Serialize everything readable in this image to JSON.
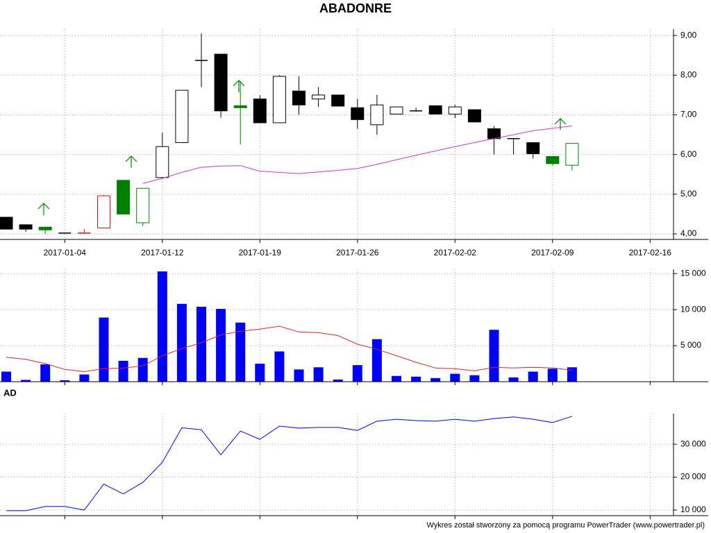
{
  "chart_data": [
    {
      "type": "candlestick",
      "title": "ABADONRE",
      "categories": [
        null,
        null,
        null,
        "2017-01-04",
        null,
        null,
        null,
        null,
        "2017-01-12",
        null,
        null,
        null,
        null,
        "2017-01-19",
        null,
        null,
        null,
        null,
        "2017-01-26",
        null,
        null,
        null,
        null,
        "2017-02-02",
        null,
        null,
        null,
        null,
        "2017-02-09",
        null,
        null,
        null,
        null,
        "2017-02-16"
      ],
      "open": [
        4.42,
        4.23,
        4.17,
        4.02,
        4.02,
        4.15,
        5.35,
        4.28,
        5.42,
        6.3,
        8.37,
        8.53,
        7.23,
        7.4,
        6.8,
        7.6,
        7.4,
        7.5,
        7.18,
        6.75,
        7.02,
        7.1,
        7.23,
        7.02,
        7.13,
        6.65,
        6.4,
        6.3,
        5.95,
        5.73,
        null,
        null,
        null,
        null
      ],
      "high": [
        4.42,
        4.23,
        4.17,
        4.02,
        4.12,
        4.98,
        5.35,
        5.15,
        6.55,
        7.62,
        9.05,
        8.53,
        7.85,
        7.5,
        8.0,
        7.97,
        7.7,
        7.5,
        7.4,
        7.5,
        7.2,
        7.18,
        7.23,
        7.25,
        7.13,
        6.72,
        6.4,
        6.3,
        5.95,
        6.28,
        null,
        null,
        null,
        null
      ],
      "low": [
        4.12,
        4.05,
        4.0,
        4.02,
        4.02,
        4.15,
        4.5,
        4.2,
        5.4,
        6.3,
        7.7,
        6.93,
        6.25,
        6.8,
        6.8,
        7.0,
        7.2,
        7.22,
        6.65,
        6.5,
        7.02,
        7.08,
        7.02,
        6.92,
        6.82,
        6.0,
        6.0,
        5.9,
        5.72,
        5.6,
        null,
        null,
        null,
        null
      ],
      "close": [
        4.12,
        4.12,
        4.1,
        4.02,
        4.02,
        4.96,
        4.5,
        5.15,
        6.2,
        7.62,
        8.37,
        7.1,
        7.18,
        6.8,
        7.97,
        7.25,
        7.5,
        7.22,
        6.88,
        7.25,
        7.2,
        7.1,
        7.02,
        7.2,
        6.82,
        6.4,
        6.4,
        6.02,
        5.77,
        6.28,
        null,
        null,
        null,
        null
      ],
      "colors": [
        "#000000",
        "#000000",
        "#008000",
        "#000000",
        "#ff0000",
        "#ff0000",
        "#008000",
        "#008000",
        "#000000",
        "#000000",
        "#000000",
        "#000000",
        "#008000",
        "#000000",
        "#000000",
        "#000000",
        "#000000",
        "#000000",
        "#000000",
        "#000000",
        "#000000",
        "#000000",
        "#000000",
        "#000000",
        "#000000",
        "#000000",
        "#000000",
        "#000000",
        "#008000",
        "#008000",
        null,
        null,
        null,
        null
      ],
      "series": [
        {
          "color": "#cc33cc",
          "values": [
            null,
            null,
            null,
            null,
            null,
            null,
            null,
            5.27,
            5.4,
            5.55,
            5.68,
            5.71,
            5.72,
            5.58,
            5.55,
            5.52,
            5.56,
            5.6,
            5.65,
            5.75,
            5.87,
            5.98,
            6.09,
            6.2,
            6.3,
            6.4,
            6.5,
            6.6,
            6.66,
            6.72,
            null,
            null,
            null,
            null
          ]
        }
      ],
      "ylim": [
        3.86,
        9.16
      ],
      "yticks": [
        {
          "value": 4,
          "label": "4,00"
        },
        {
          "value": 5,
          "label": "5,00"
        },
        {
          "value": 6,
          "label": "6,00"
        },
        {
          "value": 7,
          "label": "7,00"
        },
        {
          "value": 8,
          "label": "8,00"
        },
        {
          "value": 9,
          "label": "9,00"
        }
      ],
      "grid": true
    },
    {
      "type": "bar",
      "series": [
        {
          "type": "bar",
          "color": "#0000ff",
          "values": [
            1400,
            250,
            2400,
            200,
            1000,
            8900,
            2900,
            3300,
            15300,
            10800,
            10400,
            10100,
            8200,
            2500,
            4200,
            1700,
            2000,
            300,
            2300,
            5900,
            800,
            700,
            500,
            1100,
            900,
            7200,
            600,
            1400,
            1800,
            2000,
            null,
            null,
            null,
            null
          ]
        },
        {
          "type": "line",
          "color": "#e02020",
          "values": [
            3400,
            3100,
            2500,
            1700,
            1400,
            1800,
            1900,
            2200,
            3600,
            4600,
            5400,
            6500,
            7000,
            7300,
            7700,
            6900,
            6800,
            6400,
            5200,
            4500,
            3600,
            2700,
            1900,
            1800,
            1500,
            2000,
            1900,
            2000,
            1900,
            1600,
            null,
            null,
            null,
            null
          ]
        }
      ],
      "ylim": [
        0,
        15600
      ],
      "yticks": [
        {
          "value": 5000,
          "label": "5 000"
        },
        {
          "value": 10000,
          "label": "10 000"
        },
        {
          "value": 15000,
          "label": "15 000"
        }
      ],
      "grid": true
    },
    {
      "type": "line",
      "title": "AD",
      "series": [
        {
          "color": "#0000ff",
          "values": [
            9800,
            9800,
            11100,
            11100,
            10000,
            17900,
            14900,
            18400,
            24500,
            35000,
            34400,
            26800,
            34000,
            31500,
            35500,
            34900,
            35100,
            35100,
            34200,
            37000,
            37600,
            37200,
            37000,
            37600,
            37000,
            37800,
            38300,
            37600,
            36600,
            38500,
            null,
            null,
            null,
            null
          ]
        }
      ],
      "ylim": [
        8300,
        39300
      ],
      "yticks": [
        {
          "value": 10000,
          "label": "10 000"
        },
        {
          "value": 20000,
          "label": "20 000"
        },
        {
          "value": 30000,
          "label": "30 000"
        }
      ],
      "grid": true
    }
  ],
  "footer": "Wykres został stworzony za pomocą programu PowerTrader (www.powertrader.pl)"
}
